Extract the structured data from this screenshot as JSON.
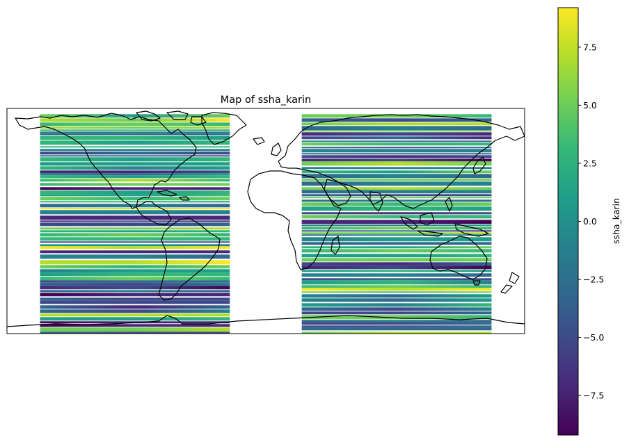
{
  "chart_data": {
    "type": "heatmap",
    "title": "Map of ssha_karin",
    "colorbar": {
      "label": "ssha_karin",
      "colormap": "viridis",
      "range": [
        -9.2,
        9.2
      ],
      "ticks": [
        {
          "value": -7.5,
          "label": "−7.5"
        },
        {
          "value": -5.0,
          "label": "−5.0"
        },
        {
          "value": -2.5,
          "label": "−2.5"
        },
        {
          "value": 0.0,
          "label": "0.0"
        },
        {
          "value": 2.5,
          "label": "2.5"
        },
        {
          "value": 5.0,
          "label": "5.0"
        },
        {
          "value": 7.5,
          "label": "7.5"
        }
      ]
    },
    "map": {
      "projection": "PlateCarree",
      "extent_lon": [
        -180,
        180
      ],
      "extent_lat": [
        -78,
        78
      ],
      "coastlines": true,
      "grid": false
    },
    "swaths": [
      {
        "lon_range": [
          -157,
          -25
        ],
        "lat_range": [
          -78,
          74
        ]
      },
      {
        "lon_range": [
          25,
          157
        ],
        "lat_range": [
          -78,
          74
        ]
      }
    ],
    "colors": {
      "viridis": [
        "#440154",
        "#482878",
        "#3e4989",
        "#31688e",
        "#26828e",
        "#1f9e89",
        "#35b779",
        "#6ece58",
        "#b5de2b",
        "#fde725"
      ]
    }
  }
}
